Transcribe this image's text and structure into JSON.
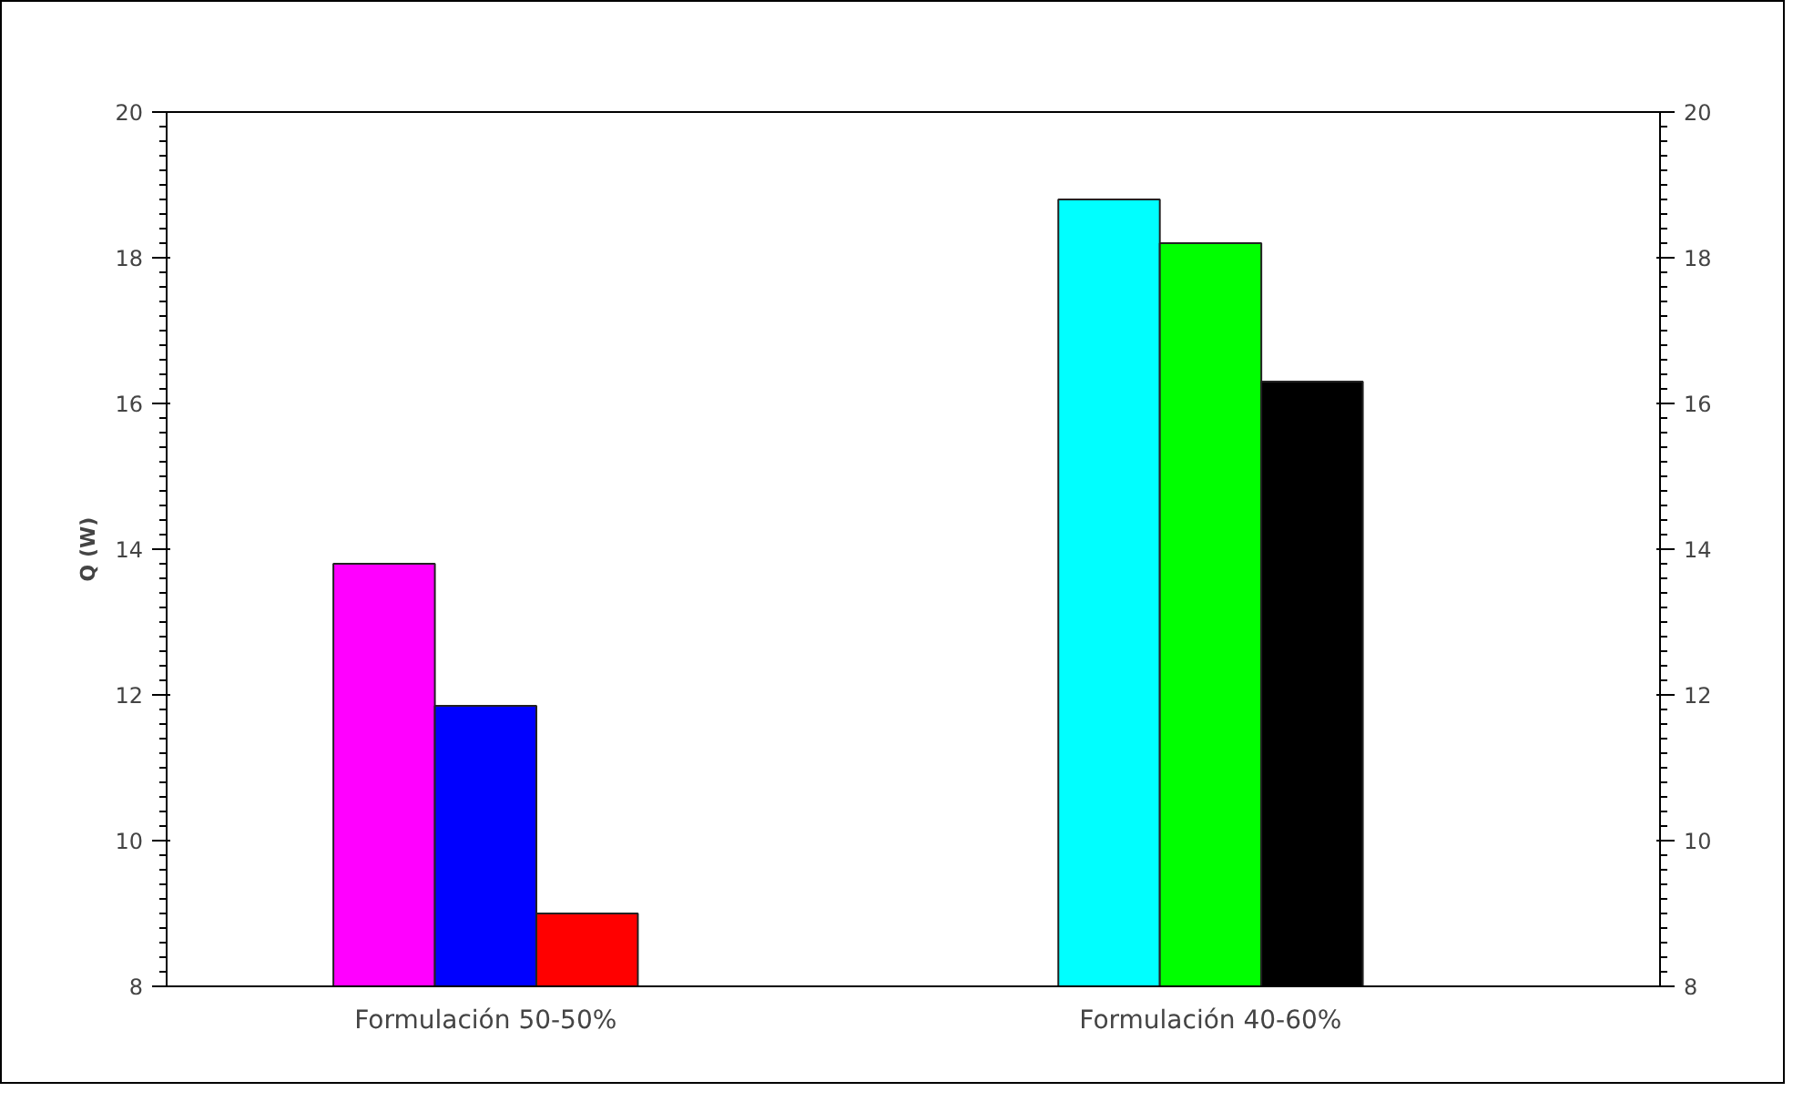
{
  "chart_data": {
    "type": "bar",
    "ylabel": "Q (W)",
    "categories": [
      "Formulación 50-50%",
      "Formulación 40-60%"
    ],
    "series": [
      {
        "colors": [
          "#ff00ff",
          "#00ffff"
        ],
        "values": [
          13.8,
          18.8
        ]
      },
      {
        "colors": [
          "#0000ff",
          "#00ff00"
        ],
        "values": [
          11.85,
          18.2
        ]
      },
      {
        "colors": [
          "#ff0000",
          "#000000"
        ],
        "values": [
          9.0,
          16.3
        ]
      }
    ],
    "ylim": [
      8,
      20
    ],
    "yticks": [
      8,
      10,
      12,
      14,
      16,
      18,
      20
    ],
    "y2lim": [
      8,
      20
    ],
    "y2ticks": [
      8,
      10,
      12,
      14,
      16,
      18,
      20
    ],
    "grid": false
  }
}
